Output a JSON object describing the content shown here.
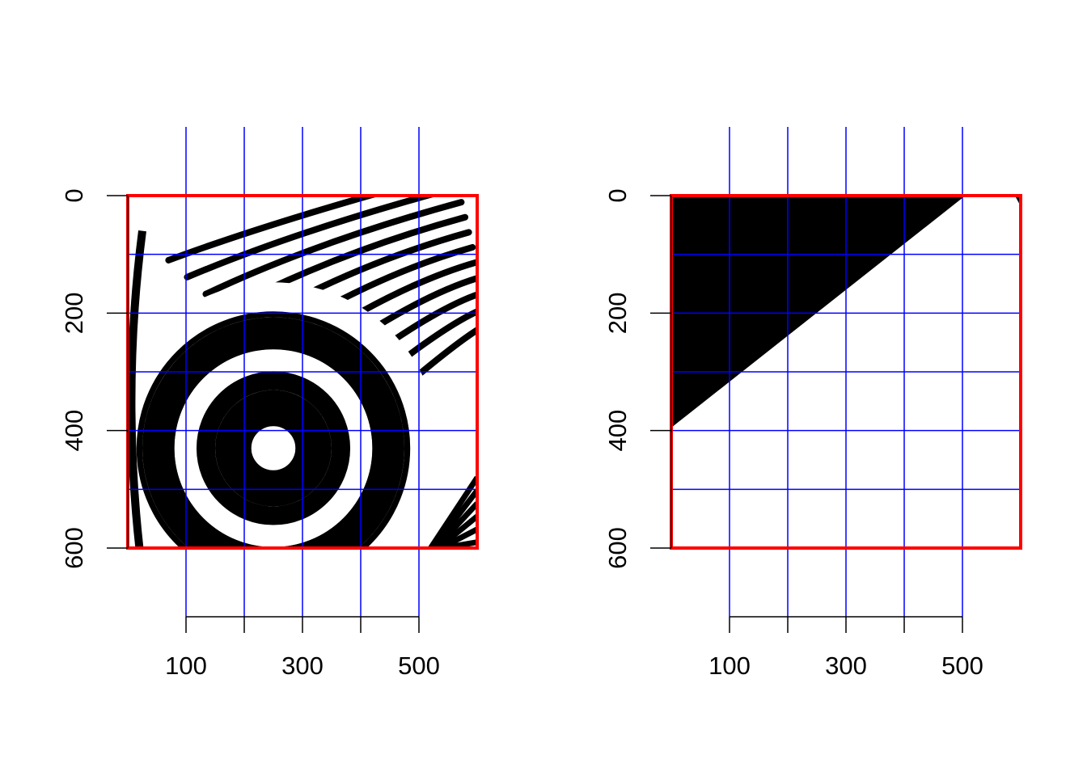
{
  "chart_data": [
    {
      "type": "image",
      "title": "",
      "xlabel": "",
      "ylabel": "",
      "xlim": [
        0,
        600
      ],
      "ylim": [
        0,
        600
      ],
      "x_axis_range": [
        100,
        500
      ],
      "y_axis_range": [
        0,
        600
      ],
      "x_ticks": [
        100,
        200,
        300,
        400,
        500
      ],
      "x_tick_labels": [
        "100",
        "",
        "300",
        "",
        "500"
      ],
      "y_ticks": [
        0,
        200,
        400,
        600
      ],
      "y_tick_labels": [
        "0",
        "200",
        "400",
        "600"
      ],
      "y_axis_inverted": true,
      "grid": {
        "color": "#0000ff",
        "vertical": [
          100,
          200,
          300,
          400,
          500
        ],
        "horizontal": [
          100,
          200,
          300,
          400,
          500
        ],
        "vertical_extends_beyond_plot": true
      },
      "frame": {
        "color": "#ff0000",
        "x": [
          0,
          600
        ],
        "y": [
          0,
          600
        ]
      },
      "image_description": "photograph of black-and-white concentric rings (resolution target) with diagonal stripes",
      "rings": {
        "center": [
          250,
          430
        ],
        "radii": [
          38,
          100,
          170,
          225,
          285
        ],
        "rings_widths": [
          22,
          32,
          26,
          10
        ]
      }
    },
    {
      "type": "image",
      "title": "",
      "xlabel": "",
      "ylabel": "",
      "xlim": [
        0,
        600
      ],
      "ylim": [
        0,
        600
      ],
      "x_axis_range": [
        100,
        500
      ],
      "y_axis_range": [
        0,
        600
      ],
      "x_ticks": [
        100,
        200,
        300,
        400,
        500
      ],
      "x_tick_labels": [
        "100",
        "",
        "300",
        "",
        "500"
      ],
      "y_ticks": [
        0,
        200,
        400,
        600
      ],
      "y_tick_labels": [
        "0",
        "200",
        "400",
        "600"
      ],
      "y_axis_inverted": true,
      "grid": {
        "color": "#0000ff",
        "vertical": [
          100,
          200,
          300,
          400,
          500
        ],
        "horizontal": [
          100,
          200,
          300,
          400,
          500
        ],
        "vertical_extends_beyond_plot": true
      },
      "frame": {
        "color": "#ff0000",
        "x": [
          0,
          600
        ],
        "y": [
          0,
          600
        ]
      },
      "black_regions": [
        [
          [
            0,
            0
          ],
          [
            505,
            0
          ],
          [
            0,
            395
          ]
        ],
        [
          [
            590,
            0
          ],
          [
            600,
            0
          ],
          [
            600,
            18
          ]
        ]
      ]
    }
  ]
}
